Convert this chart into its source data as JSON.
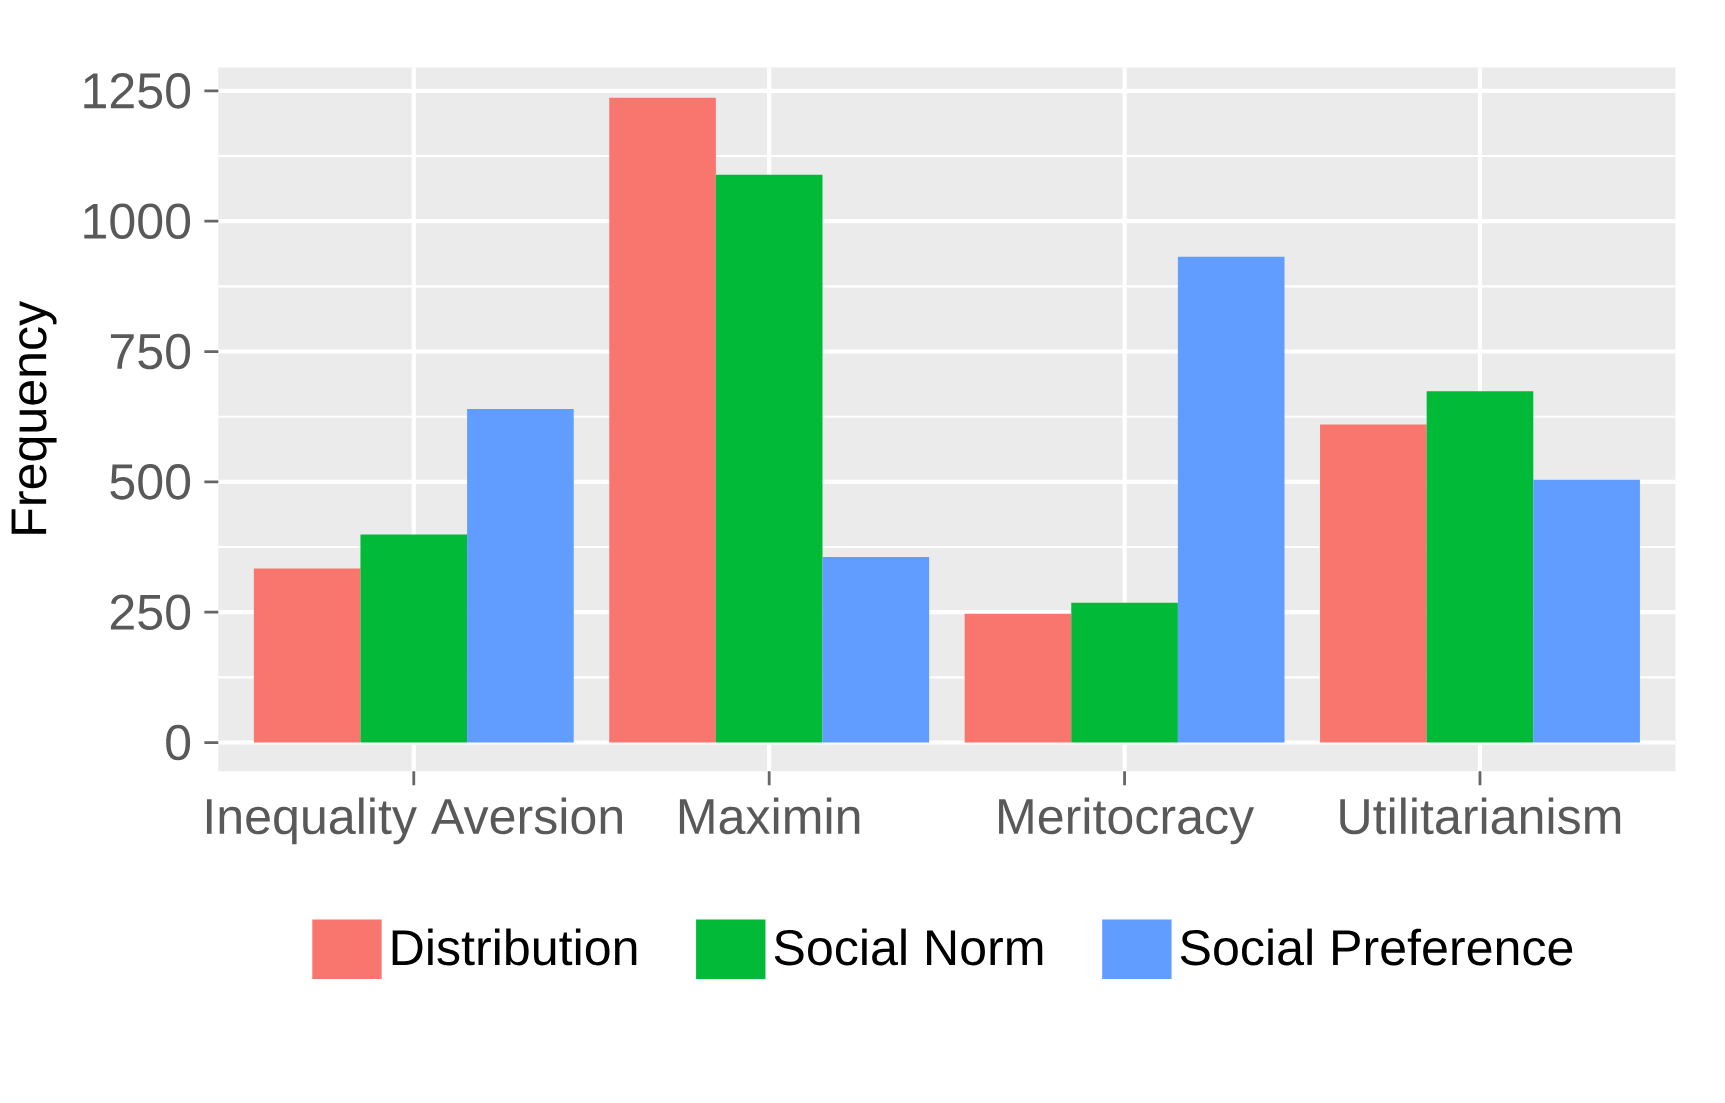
{
  "chart_data": {
    "type": "bar",
    "ylabel": "Frequency",
    "categories": [
      "Inequality Aversion",
      "Maximin",
      "Meritocracy",
      "Utilitarianism"
    ],
    "series": [
      {
        "name": "Distribution",
        "color": "#f8766d",
        "values": [
          334,
          1237,
          247,
          610
        ]
      },
      {
        "name": "Social Norm",
        "color": "#00ba38",
        "values": [
          399,
          1089,
          268,
          674
        ]
      },
      {
        "name": "Social Preference",
        "color": "#619cff",
        "values": [
          640,
          356,
          932,
          504
        ]
      }
    ],
    "ylim": [
      -55,
      1295
    ],
    "yticks": [
      0,
      250,
      500,
      750,
      1000,
      1250
    ],
    "grid": true,
    "legend": "bottom"
  }
}
